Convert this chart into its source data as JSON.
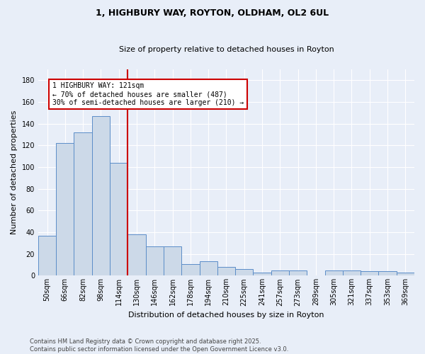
{
  "title_line1": "1, HIGHBURY WAY, ROYTON, OLDHAM, OL2 6UL",
  "title_line2": "Size of property relative to detached houses in Royton",
  "xlabel": "Distribution of detached houses by size in Royton",
  "ylabel": "Number of detached properties",
  "categories": [
    "50sqm",
    "66sqm",
    "82sqm",
    "98sqm",
    "114sqm",
    "130sqm",
    "146sqm",
    "162sqm",
    "178sqm",
    "194sqm",
    "210sqm",
    "225sqm",
    "241sqm",
    "257sqm",
    "273sqm",
    "289sqm",
    "305sqm",
    "321sqm",
    "337sqm",
    "353sqm",
    "369sqm"
  ],
  "values": [
    37,
    122,
    132,
    147,
    104,
    38,
    27,
    27,
    11,
    13,
    8,
    6,
    3,
    5,
    5,
    0,
    5,
    5,
    4,
    4,
    3
  ],
  "bar_color": "#ccd9e8",
  "bar_edge_color": "#5b8dc8",
  "annotation_text": "1 HIGHBURY WAY: 121sqm\n← 70% of detached houses are smaller (487)\n30% of semi-detached houses are larger (210) →",
  "annotation_box_color": "#ffffff",
  "annotation_box_edge": "#cc0000",
  "vline_color": "#cc0000",
  "footer_line1": "Contains HM Land Registry data © Crown copyright and database right 2025.",
  "footer_line2": "Contains public sector information licensed under the Open Government Licence v3.0.",
  "ylim": [
    0,
    190
  ],
  "yticks": [
    0,
    20,
    40,
    60,
    80,
    100,
    120,
    140,
    160,
    180
  ],
  "background_color": "#e8eef8",
  "grid_color": "#ffffff",
  "title1_fontsize": 9,
  "title2_fontsize": 8,
  "ylabel_fontsize": 8,
  "xlabel_fontsize": 8,
  "tick_fontsize": 7,
  "footer_fontsize": 6
}
